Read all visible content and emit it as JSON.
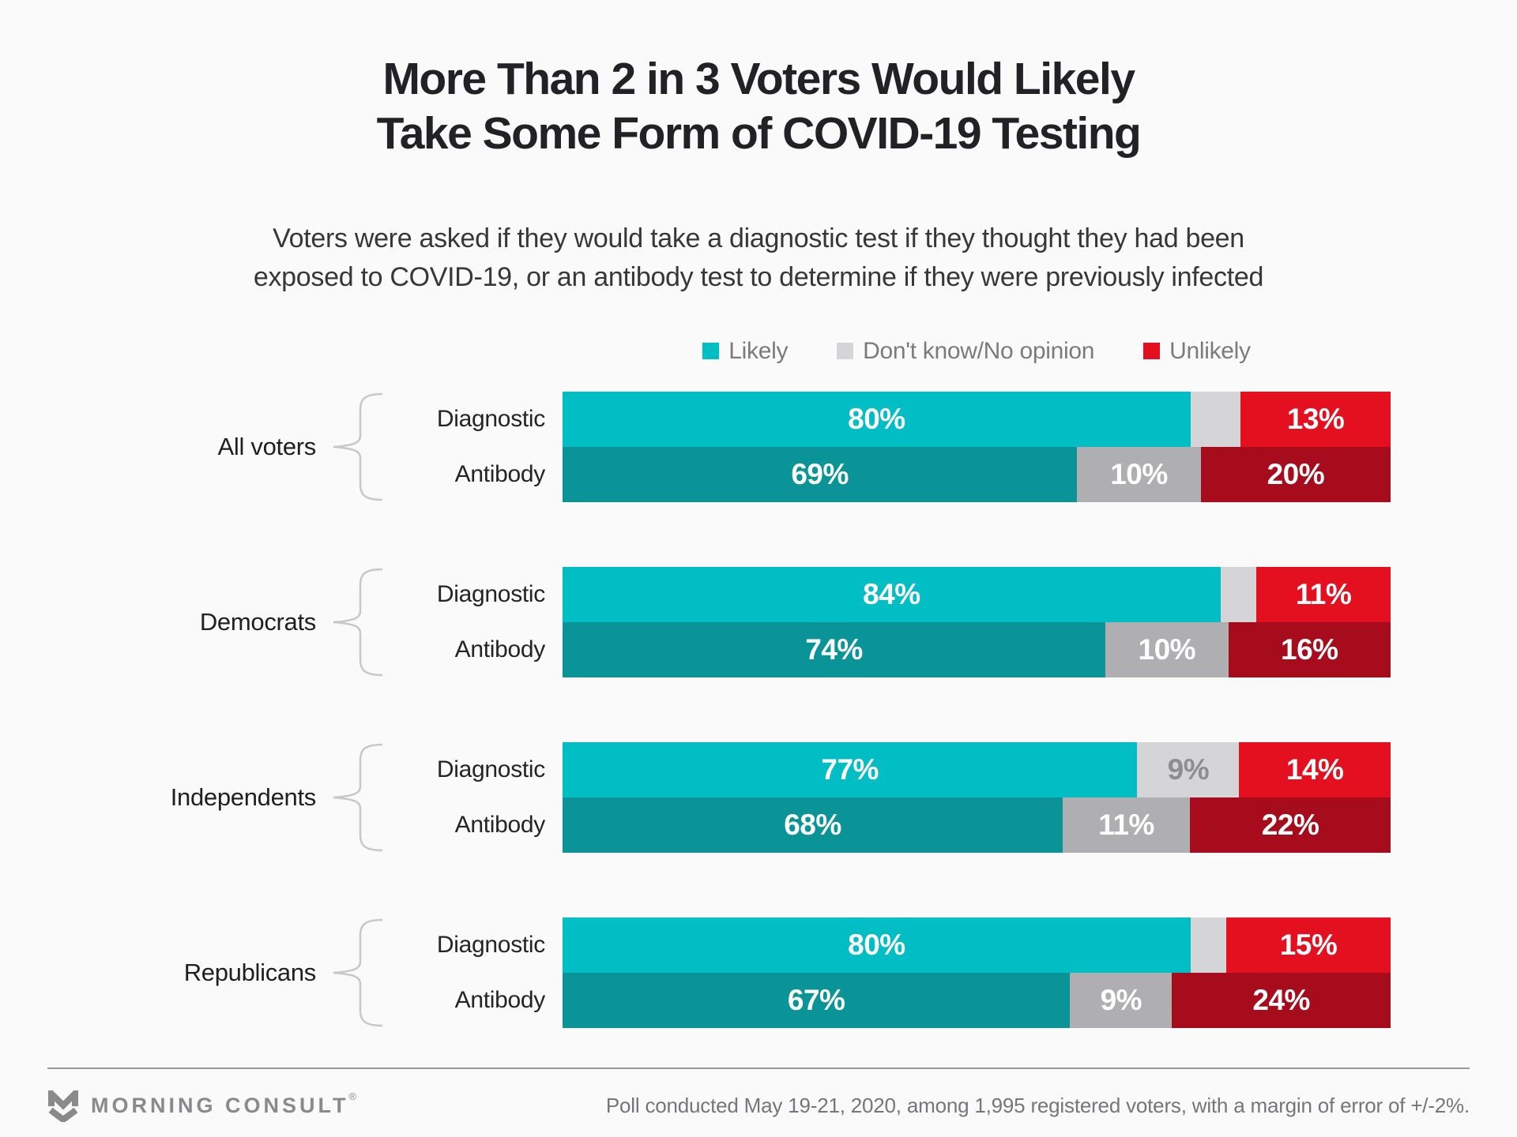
{
  "title": {
    "line1": "More Than 2 in 3 Voters Would Likely",
    "line2": "Take Some Form of COVID-19 Testing"
  },
  "subtitle": {
    "line1": "Voters were asked if they would take a diagnostic test if they thought they had been",
    "line2": "exposed to COVID-19, or an antibody test to determine if they were previously infected"
  },
  "legend": {
    "items": [
      {
        "label": "Likely",
        "color": "#00BEC3"
      },
      {
        "label": "Don't know/No opinion",
        "color": "#D5D5D7"
      },
      {
        "label": "Unlikely",
        "color": "#E4101F"
      }
    ]
  },
  "chart_data": {
    "type": "bar",
    "orientation": "horizontal",
    "stacked": true,
    "unit": "%",
    "xlim": [
      0,
      100
    ],
    "grid": false,
    "legend_position": "top-center",
    "series_order": [
      "likely",
      "dont_know",
      "unlikely"
    ],
    "series_names": {
      "likely": "Likely",
      "dont_know": "Don't know/No opinion",
      "unlikely": "Unlikely"
    },
    "row_labels": [
      "Diagnostic",
      "Antibody"
    ],
    "groups": [
      {
        "label": "All voters",
        "rows": [
          {
            "label": "Diagnostic",
            "variant": "diagnostic",
            "values": {
              "likely": 80,
              "dont_know": 7,
              "unlikely": 13
            },
            "labels": {
              "likely": "80%",
              "dont_know": "",
              "unlikely": "13%"
            }
          },
          {
            "label": "Antibody",
            "variant": "antibody",
            "values": {
              "likely": 69,
              "dont_know": 10,
              "unlikely": 20
            },
            "labels": {
              "likely": "69%",
              "dont_know": "10%",
              "unlikely": "20%"
            }
          }
        ]
      },
      {
        "label": "Democrats",
        "rows": [
          {
            "label": "Diagnostic",
            "variant": "diagnostic",
            "values": {
              "likely": 84,
              "dont_know": 5,
              "unlikely": 11
            },
            "labels": {
              "likely": "84%",
              "dont_know": "",
              "unlikely": "11%"
            }
          },
          {
            "label": "Antibody",
            "variant": "antibody",
            "values": {
              "likely": 74,
              "dont_know": 10,
              "unlikely": 16
            },
            "labels": {
              "likely": "74%",
              "dont_know": "10%",
              "unlikely": "16%"
            }
          }
        ]
      },
      {
        "label": "Independents",
        "rows": [
          {
            "label": "Diagnostic",
            "variant": "diagnostic",
            "values": {
              "likely": 77,
              "dont_know": 9,
              "unlikely": 14
            },
            "labels": {
              "likely": "77%",
              "dont_know": "9%",
              "unlikely": "14%"
            }
          },
          {
            "label": "Antibody",
            "variant": "antibody",
            "values": {
              "likely": 68,
              "dont_know": 11,
              "unlikely": 22
            },
            "labels": {
              "likely": "68%",
              "dont_know": "11%",
              "unlikely": "22%"
            }
          }
        ]
      },
      {
        "label": "Republicans",
        "rows": [
          {
            "label": "Diagnostic",
            "variant": "diagnostic",
            "values": {
              "likely": 80,
              "dont_know": 5,
              "unlikely": 15
            },
            "labels": {
              "likely": "80%",
              "dont_know": "",
              "unlikely": "15%"
            }
          },
          {
            "label": "Antibody",
            "variant": "antibody",
            "values": {
              "likely": 67,
              "dont_know": 9,
              "unlikely": 24
            },
            "labels": {
              "likely": "67%",
              "dont_know": "9%",
              "unlikely": "24%"
            }
          }
        ]
      }
    ],
    "colors": {
      "diagnostic": {
        "likely": "#00BEC3",
        "dont_know": "#D5D5D7",
        "unlikely": "#E4101F"
      },
      "antibody": {
        "likely": "#0A9498",
        "dont_know": "#AFAFB1",
        "unlikely": "#A60C1B"
      },
      "dk_label_on_light": "#8E8E90",
      "bar_label": "#FFFFFF",
      "brace": "#C8C8C8"
    }
  },
  "footer": {
    "brand": "MORNING CONSULT",
    "reg": "®",
    "note": "Poll conducted May 19-21, 2020, among 1,995 registered voters, with a margin of error of +/-2%."
  }
}
